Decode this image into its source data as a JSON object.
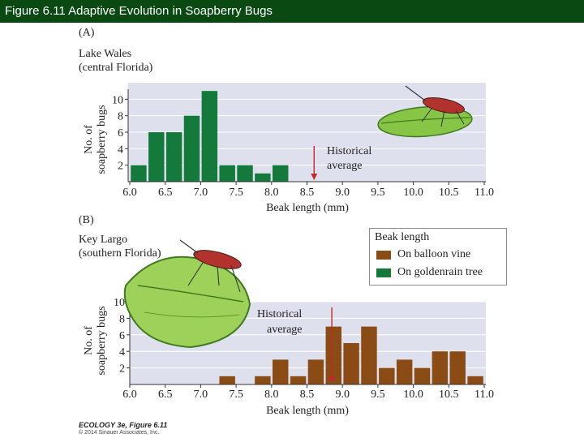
{
  "header": {
    "title": "Figure 6.11  Adaptive Evolution in Soapberry Bugs"
  },
  "colors": {
    "header_bg": "#0a4a12",
    "green": "#137a3c",
    "brown": "#8a4b14",
    "plot_bg": "#dfe0ed",
    "arrow": "#c0292b"
  },
  "panelA": {
    "label": "(A)",
    "location_line1": "Lake Wales",
    "location_line2": "(central Florida)",
    "annotation_line1": "Historical",
    "annotation_line2": "average"
  },
  "panelB": {
    "label": "(B)",
    "location_line1": "Key Largo",
    "location_line2": "(southern Florida)",
    "annotation_line1": "Historical",
    "annotation_line2": "average"
  },
  "legend": {
    "title": "Beak length",
    "items": [
      {
        "label": "On balloon vine",
        "color": "#8a4b14"
      },
      {
        "label": "On goldenrain tree",
        "color": "#137a3c"
      }
    ]
  },
  "footer": {
    "line1": "ECOLOGY 3e, Figure 6.11",
    "line2": "© 2014 Sinauer Associates, Inc."
  },
  "chart_data": [
    {
      "type": "bar",
      "panel": "A",
      "xlabel": "Beak length (mm)",
      "ylabel": "No. of soapberry bugs",
      "bin_width": 0.25,
      "x": [
        6.0,
        6.25,
        6.5,
        6.75,
        7.0,
        7.25,
        7.5,
        7.75,
        8.0
      ],
      "values": [
        2,
        6,
        6,
        8,
        11,
        2,
        2,
        1,
        2
      ],
      "xlim": [
        6.0,
        11.0
      ],
      "ylim": [
        0,
        12
      ],
      "xticks": [
        "6.0",
        "6.5",
        "7.0",
        "7.5",
        "8.0",
        "8.5",
        "9.0",
        "9.5",
        "10.0",
        "10.5",
        "11.0"
      ],
      "yticks": [
        "2",
        "4",
        "6",
        "8",
        "10"
      ],
      "historical_average": 8.6,
      "color": "#137a3c"
    },
    {
      "type": "bar",
      "panel": "B",
      "xlabel": "Beak length (mm)",
      "ylabel": "No. of soapberry bugs",
      "bin_width": 0.25,
      "x": [
        7.25,
        7.75,
        8.0,
        8.25,
        8.5,
        8.75,
        9.0,
        9.25,
        9.5,
        9.75,
        10.0,
        10.25,
        10.5,
        10.75
      ],
      "values": [
        1,
        1,
        3,
        1,
        3,
        7,
        5,
        7,
        2,
        3,
        2,
        4,
        4,
        1
      ],
      "xlim": [
        6.0,
        11.0
      ],
      "ylim": [
        0,
        10
      ],
      "xticks": [
        "6.0",
        "6.5",
        "7.0",
        "7.5",
        "8.0",
        "8.5",
        "9.0",
        "9.5",
        "10.0",
        "10.5",
        "11.0"
      ],
      "yticks": [
        "2",
        "4",
        "6",
        "8",
        "10"
      ],
      "historical_average": 8.85,
      "color": "#8a4b14"
    }
  ]
}
